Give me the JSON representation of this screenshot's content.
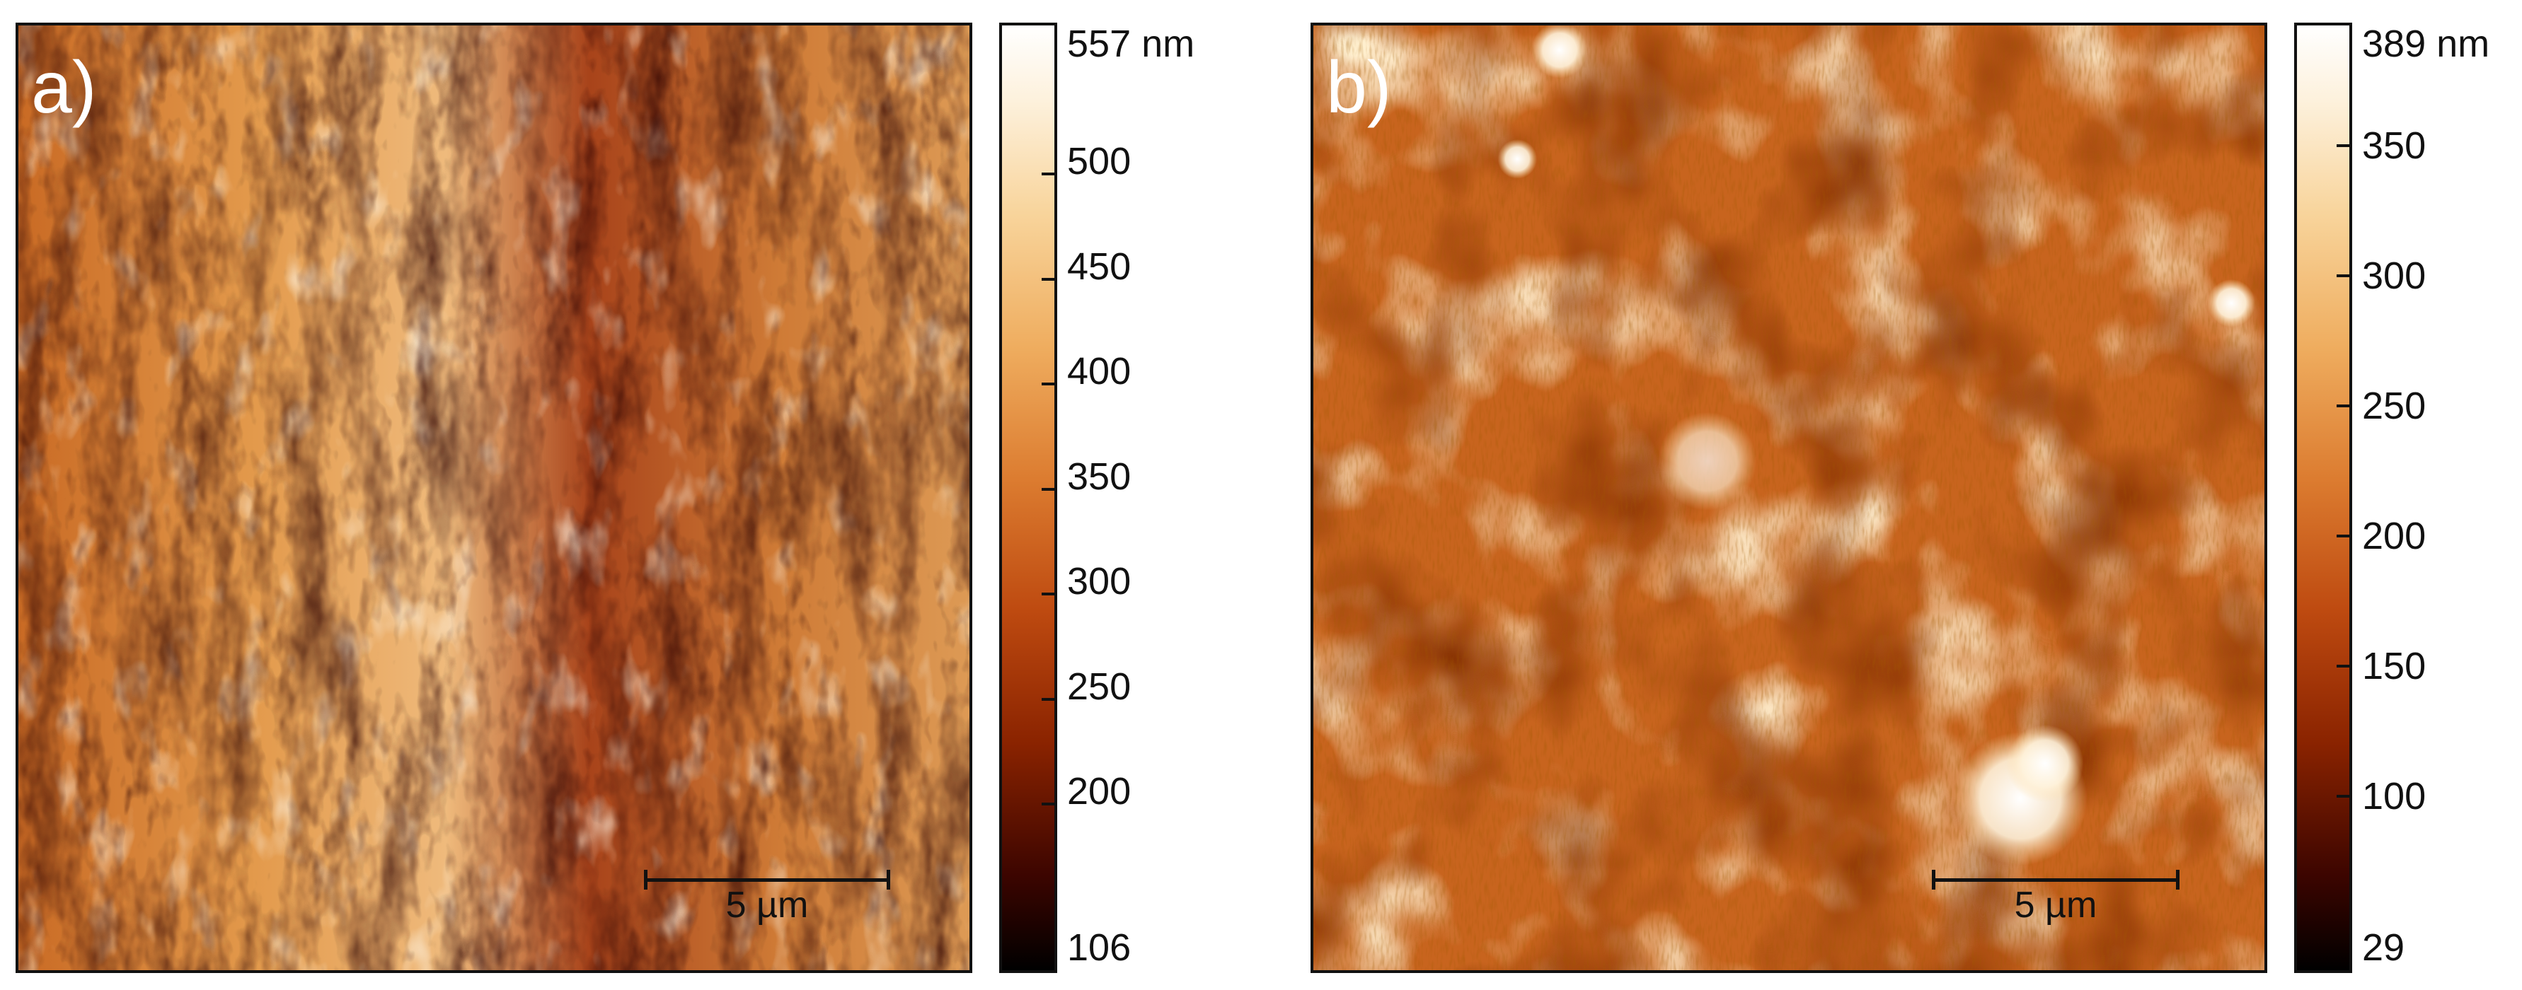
{
  "panels": {
    "a": {
      "label": "a)",
      "scale_bar": "5 µm",
      "colorbar": {
        "max_label": "557 nm",
        "min_label": "106",
        "ticks": [
          "500",
          "450",
          "400",
          "350",
          "300",
          "250",
          "200"
        ]
      }
    },
    "b": {
      "label": "b)",
      "scale_bar": "5 µm",
      "colorbar": {
        "max_label": "389 nm",
        "min_label": "29",
        "ticks": [
          "350",
          "300",
          "250",
          "200",
          "150",
          "100"
        ]
      }
    }
  },
  "colors": {
    "dark": "#000000",
    "mid": "#c15a1a",
    "light": "#ffffff",
    "frame": "#111111"
  }
}
